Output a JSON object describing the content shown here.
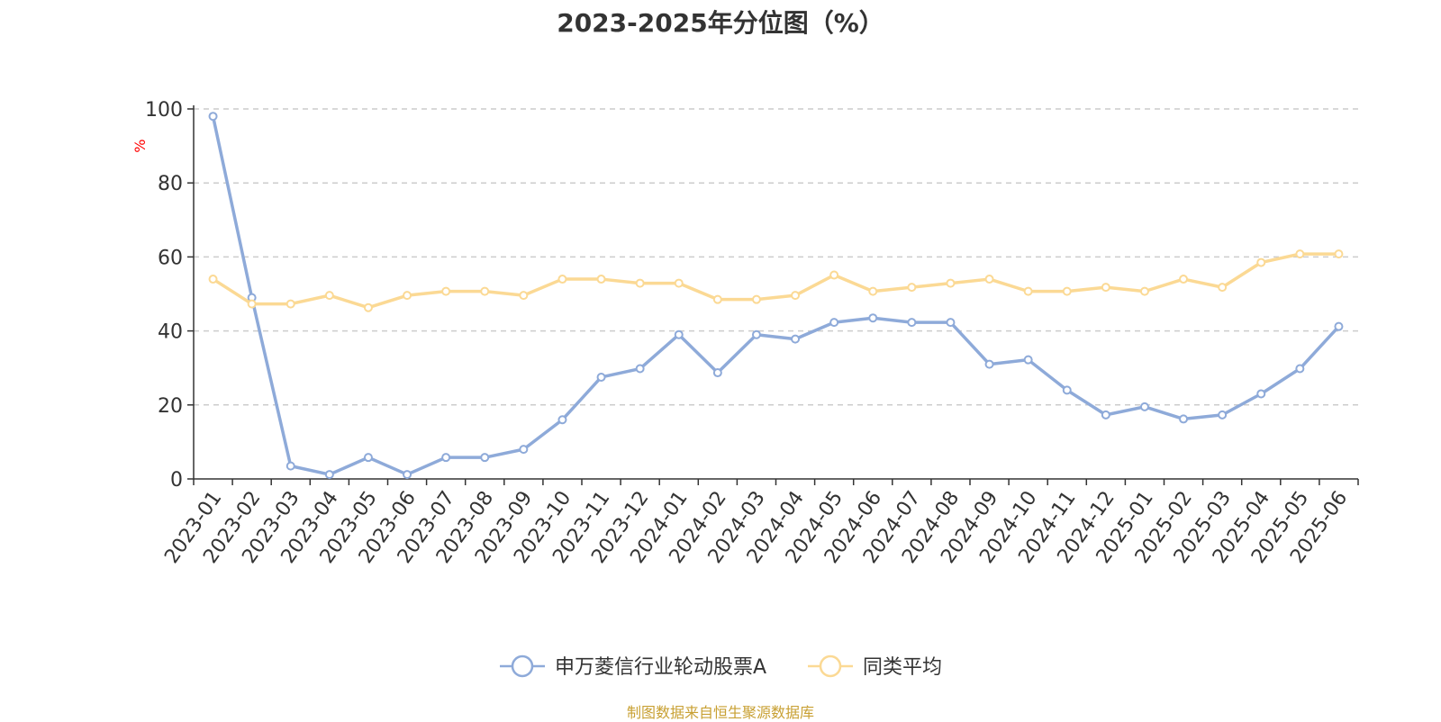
{
  "chart_data": {
    "type": "line",
    "title": "2023-2025年分位图（%）",
    "ylabel": "%",
    "xlabel": "",
    "ylim": [
      0,
      100
    ],
    "yticks": [
      0,
      20,
      40,
      60,
      80,
      100
    ],
    "grid": true,
    "legend_position": "bottom",
    "categories": [
      "2023-01",
      "2023-02",
      "2023-03",
      "2023-04",
      "2023-05",
      "2023-06",
      "2023-07",
      "2023-08",
      "2023-09",
      "2023-10",
      "2023-11",
      "2023-12",
      "2024-01",
      "2024-02",
      "2024-03",
      "2024-04",
      "2024-05",
      "2024-06",
      "2024-07",
      "2024-08",
      "2024-09",
      "2024-10",
      "2024-11",
      "2024-12",
      "2025-01",
      "2025-02",
      "2025-03",
      "2025-04",
      "2025-05",
      "2025-06"
    ],
    "series": [
      {
        "name": "申万菱信行业轮动股票A",
        "color": "#8eaad9",
        "values": [
          98,
          49,
          3.5,
          1.2,
          5.8,
          1.2,
          5.8,
          5.8,
          8,
          16,
          27.5,
          29.8,
          39,
          28.7,
          39,
          37.8,
          42.3,
          43.5,
          42.3,
          42.3,
          31,
          32.2,
          24,
          17.3,
          19.5,
          16.2,
          17.3,
          23,
          29.8,
          41.2
        ]
      },
      {
        "name": "同类平均",
        "color": "#fbd994",
        "values": [
          54,
          47.3,
          47.3,
          49.6,
          46.3,
          49.6,
          50.7,
          50.7,
          49.6,
          54,
          54,
          52.9,
          52.9,
          48.5,
          48.5,
          49.6,
          55.1,
          50.7,
          51.8,
          52.9,
          54,
          50.7,
          50.7,
          51.8,
          50.7,
          54,
          51.8,
          58.5,
          60.8,
          60.8
        ]
      }
    ]
  },
  "source_note": "制图数据来自恒生聚源数据库",
  "colors": {
    "axis": "#333333",
    "grid": "#cccccc",
    "ylabel": "#ff0000",
    "source": "#c8a033"
  }
}
